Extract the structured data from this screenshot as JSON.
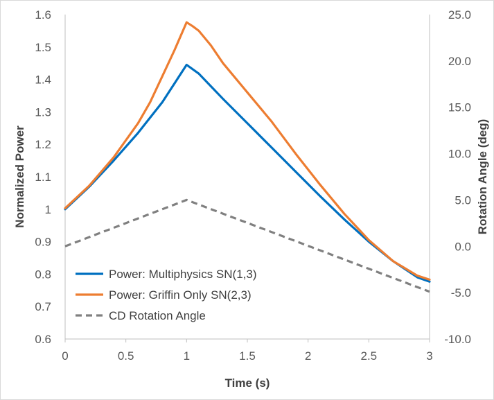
{
  "chart_data": {
    "type": "line",
    "xlabel": "Time (s)",
    "ylabel": "Normalized Power",
    "y2label": "Rotation Angle (deg)",
    "xlim": [
      0,
      3
    ],
    "ylim": [
      0.6,
      1.6
    ],
    "y2lim": [
      -10,
      25
    ],
    "x_ticks": [
      "0",
      "0.5",
      "1",
      "1.5",
      "2",
      "2.5",
      "3"
    ],
    "y_ticks": [
      "0.6",
      "0.7",
      "0.8",
      "0.9",
      "1",
      "1.1",
      "1.2",
      "1.3",
      "1.4",
      "1.5",
      "1.6"
    ],
    "y2_ticks": [
      "-10.0",
      "-5.0",
      "0.0",
      "5.0",
      "10.0",
      "15.0",
      "20.0",
      "25.0"
    ],
    "grid": false,
    "legend_position": "bottom-left",
    "series": [
      {
        "name": "Power: Multiphysics SN(1,3)",
        "axis": "left",
        "color": "#0070c0",
        "dash": "solid",
        "x": [
          0,
          0.2,
          0.4,
          0.6,
          0.8,
          1.0,
          1.1,
          1.3,
          1.5,
          1.7,
          1.9,
          2.1,
          2.3,
          2.5,
          2.7,
          2.9,
          3.0
        ],
        "y": [
          1.0,
          1.07,
          1.15,
          1.235,
          1.33,
          1.445,
          1.418,
          1.34,
          1.265,
          1.19,
          1.115,
          1.04,
          0.968,
          0.9,
          0.84,
          0.79,
          0.777
        ]
      },
      {
        "name": "Power: Griffin Only SN(2,3)",
        "axis": "left",
        "color": "#ed7d31",
        "dash": "solid",
        "x": [
          0,
          0.2,
          0.4,
          0.6,
          0.7,
          0.8,
          0.9,
          1.0,
          1.05,
          1.1,
          1.2,
          1.3,
          1.5,
          1.7,
          1.9,
          2.1,
          2.3,
          2.5,
          2.7,
          2.9,
          3.0
        ],
        "y": [
          1.003,
          1.073,
          1.16,
          1.265,
          1.33,
          1.41,
          1.49,
          1.576,
          1.564,
          1.55,
          1.505,
          1.45,
          1.36,
          1.27,
          1.17,
          1.075,
          0.985,
          0.905,
          0.84,
          0.795,
          0.783
        ]
      },
      {
        "name": "CD Rotation Angle",
        "axis": "right",
        "color": "#808080",
        "dash": "dashed",
        "x": [
          0,
          1.0,
          3.0
        ],
        "y": [
          0.0,
          5.0,
          -4.9
        ]
      }
    ]
  }
}
